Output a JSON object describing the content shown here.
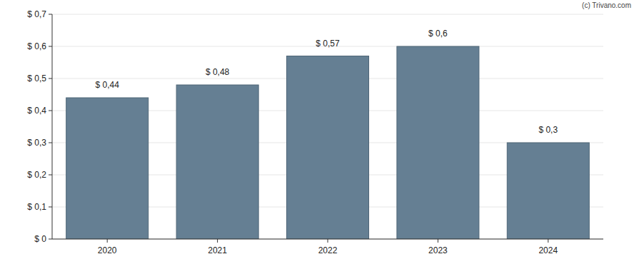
{
  "chart_data": {
    "type": "bar",
    "annotations": [
      "(c) Trivano.com"
    ],
    "categories": [
      "2020",
      "2021",
      "2022",
      "2023",
      "2024"
    ],
    "values": [
      0.44,
      0.48,
      0.57,
      0.6,
      0.3
    ],
    "value_labels": [
      "$ 0,44",
      "$ 0,48",
      "$ 0,57",
      "$ 0,6",
      "$ 0,3"
    ],
    "data_labels": true,
    "color": "#657f93",
    "ylim": [
      0,
      0.7
    ],
    "yticks": [
      {
        "value": 0,
        "label": "$ 0"
      },
      {
        "value": 0.1,
        "label": "$ 0,1"
      },
      {
        "value": 0.2,
        "label": "$ 0,2"
      },
      {
        "value": 0.3,
        "label": "$ 0,3"
      },
      {
        "value": 0.4,
        "label": "$ 0,4"
      },
      {
        "value": 0.5,
        "label": "$ 0,5"
      },
      {
        "value": 0.6,
        "label": "$ 0,6"
      },
      {
        "value": 0.7,
        "label": "$ 0,7"
      }
    ],
    "grid": true
  }
}
